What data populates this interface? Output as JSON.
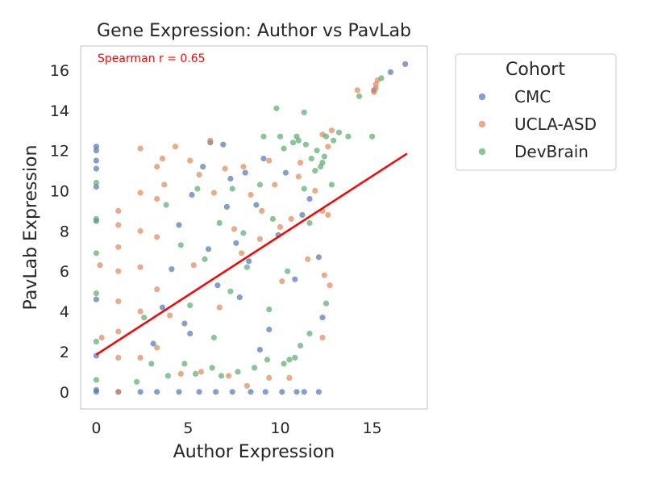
{
  "chart_data": {
    "type": "scatter",
    "title": "Gene Expression: Author vs PavLab",
    "xlabel": "Author Expression",
    "ylabel": "PavLab Expression",
    "xlim": [
      -0.85,
      18.0
    ],
    "ylim": [
      -0.85,
      17.2
    ],
    "xticks": [
      0,
      5,
      10,
      15
    ],
    "yticks": [
      0,
      2,
      4,
      6,
      8,
      10,
      12,
      14,
      16
    ],
    "grid": false,
    "annotation": {
      "text": "Spearman r = 0.65",
      "color": "#ff0000"
    },
    "legend": {
      "title": "Cohort",
      "placement": "outside-right"
    },
    "regression_line": {
      "x": [
        0,
        16.9
      ],
      "y": [
        1.85,
        11.85
      ],
      "color": "#ff0000"
    },
    "series": [
      {
        "name": "CMC",
        "color": "#4c72b0",
        "points": [
          [
            0,
            0
          ],
          [
            0,
            0.1
          ],
          [
            0,
            1.8
          ],
          [
            0,
            4.6
          ],
          [
            0,
            8.5
          ],
          [
            0,
            10.2
          ],
          [
            0,
            11.1
          ],
          [
            0,
            12.2
          ],
          [
            0,
            12.0
          ],
          [
            0,
            11.5
          ],
          [
            1.2,
            0
          ],
          [
            2.4,
            0
          ],
          [
            3.3,
            0
          ],
          [
            4.5,
            0
          ],
          [
            5.6,
            0
          ],
          [
            6.5,
            0
          ],
          [
            7.4,
            0
          ],
          [
            8.4,
            0
          ],
          [
            9.2,
            0
          ],
          [
            10.1,
            0
          ],
          [
            10.9,
            0
          ],
          [
            11.3,
            0
          ],
          [
            12.1,
            0
          ],
          [
            3.1,
            2.4
          ],
          [
            3.6,
            4.2
          ],
          [
            4.1,
            6.1
          ],
          [
            4.5,
            8.3
          ],
          [
            5.2,
            9.8
          ],
          [
            5.8,
            11.2
          ],
          [
            6.2,
            12.4
          ],
          [
            6.9,
            12.3
          ],
          [
            7.3,
            10.6
          ],
          [
            7.8,
            4.7
          ],
          [
            8.3,
            6.5
          ],
          [
            8.7,
            9.3
          ],
          [
            9.1,
            11.6
          ],
          [
            9.4,
            3.1
          ],
          [
            9.9,
            7.8
          ],
          [
            10.3,
            10.9
          ],
          [
            10.8,
            5.6
          ],
          [
            11.2,
            8.8
          ],
          [
            11.6,
            9.6
          ],
          [
            12.1,
            6.7
          ],
          [
            12.3,
            3.7
          ],
          [
            15.1,
            15.0
          ],
          [
            16.0,
            15.9
          ],
          [
            16.8,
            16.3
          ],
          [
            5.1,
            2.9
          ],
          [
            6.6,
            5.3
          ],
          [
            7.6,
            7.4
          ],
          [
            8.9,
            2.1
          ],
          [
            4.8,
            3.4
          ],
          [
            6.1,
            7.1
          ],
          [
            7.1,
            9.2
          ],
          [
            8.1,
            10.9
          ]
        ]
      },
      {
        "name": "UCLA-ASD",
        "color": "#dd8452",
        "points": [
          [
            1.2,
            0
          ],
          [
            1.2,
            1.7
          ],
          [
            1.2,
            3.0
          ],
          [
            1.2,
            4.5
          ],
          [
            1.2,
            6.0
          ],
          [
            1.2,
            7.2
          ],
          [
            1.2,
            8.3
          ],
          [
            1.2,
            9.0
          ],
          [
            2.4,
            1.7
          ],
          [
            2.4,
            4.0
          ],
          [
            2.4,
            6.2
          ],
          [
            2.4,
            8.0
          ],
          [
            2.4,
            9.9
          ],
          [
            2.4,
            12.1
          ],
          [
            3.3,
            2.2
          ],
          [
            3.3,
            5.1
          ],
          [
            3.3,
            7.7
          ],
          [
            3.3,
            9.6
          ],
          [
            3.3,
            11.2
          ],
          [
            3.6,
            11.6
          ],
          [
            4.3,
            12.2
          ],
          [
            5.1,
            11.5
          ],
          [
            5.6,
            10.8
          ],
          [
            6.2,
            12.5
          ],
          [
            7.0,
            11.1
          ],
          [
            7.5,
            8.1
          ],
          [
            8.0,
            11.2
          ],
          [
            8.4,
            9.8
          ],
          [
            8.9,
            7.6
          ],
          [
            9.4,
            11.5
          ],
          [
            9.7,
            10.3
          ],
          [
            10.1,
            5.5
          ],
          [
            10.6,
            8.6
          ],
          [
            11.1,
            11.4
          ],
          [
            11.5,
            6.6
          ],
          [
            11.9,
            10.0
          ],
          [
            12.3,
            9.0
          ],
          [
            12.4,
            5.8
          ],
          [
            12.6,
            8.8
          ],
          [
            12.7,
            5.3
          ],
          [
            12.6,
            12.2
          ],
          [
            12.3,
            12.8
          ],
          [
            12.8,
            13.0
          ],
          [
            14.2,
            15.0
          ],
          [
            15.1,
            14.9
          ],
          [
            15.2,
            15.3
          ],
          [
            15.3,
            15.5
          ],
          [
            15.2,
            15.1
          ],
          [
            0.3,
            2.7
          ],
          [
            0.2,
            6.3
          ],
          [
            4.6,
            0.9
          ],
          [
            5.7,
            1.0
          ],
          [
            7.2,
            0.8
          ],
          [
            8.2,
            0.3
          ],
          [
            9.4,
            0.7
          ],
          [
            10.5,
            0.7
          ],
          [
            12.3,
            2.7
          ],
          [
            4.0,
            3.8
          ],
          [
            5.3,
            6.3
          ],
          [
            6.7,
            4.2
          ],
          [
            7.9,
            6.9
          ],
          [
            9.0,
            9.0
          ],
          [
            10.0,
            8.2
          ],
          [
            11.0,
            10.7
          ],
          [
            3.7,
            10.3
          ],
          [
            6.4,
            9.9
          ]
        ]
      },
      {
        "name": "DevBrain",
        "color": "#55a868",
        "points": [
          [
            0,
            0.6
          ],
          [
            0,
            2.5
          ],
          [
            0,
            4.9
          ],
          [
            0,
            6.9
          ],
          [
            0,
            8.6
          ],
          [
            0,
            10.4
          ],
          [
            2.2,
            0.5
          ],
          [
            3.0,
            1.4
          ],
          [
            3.9,
            0.8
          ],
          [
            4.8,
            1.4
          ],
          [
            5.4,
            0.9
          ],
          [
            6.3,
            1.2
          ],
          [
            6.8,
            0.8
          ],
          [
            7.7,
            1.0
          ],
          [
            8.6,
            1.2
          ],
          [
            9.3,
            1.6
          ],
          [
            10.2,
            1.4
          ],
          [
            10.8,
            1.7
          ],
          [
            11.1,
            2.3
          ],
          [
            5.1,
            4.3
          ],
          [
            5.9,
            6.6
          ],
          [
            6.7,
            8.4
          ],
          [
            7.4,
            10.1
          ],
          [
            8.2,
            6.2
          ],
          [
            8.9,
            10.3
          ],
          [
            9.6,
            8.6
          ],
          [
            10.2,
            12.1
          ],
          [
            10.7,
            12.4
          ],
          [
            11.0,
            12.5
          ],
          [
            11.4,
            12.3
          ],
          [
            11.7,
            11.6
          ],
          [
            12.0,
            12.0
          ],
          [
            12.3,
            11.4
          ],
          [
            12.5,
            12.7
          ],
          [
            12.9,
            12.5
          ],
          [
            11.3,
            13.9
          ],
          [
            10.9,
            12.7
          ],
          [
            9.8,
            14.1
          ],
          [
            10.0,
            12.7
          ],
          [
            9.1,
            12.7
          ],
          [
            11.3,
            10.1
          ],
          [
            11.6,
            8.4
          ],
          [
            12.5,
            4.4
          ],
          [
            11.6,
            2.9
          ],
          [
            10.5,
            1.6
          ],
          [
            12.8,
            10.3
          ],
          [
            13.7,
            12.7
          ],
          [
            13.2,
            12.9
          ],
          [
            14.3,
            14.7
          ],
          [
            15.0,
            12.7
          ],
          [
            15.5,
            15.6
          ],
          [
            12.2,
            11.2
          ],
          [
            11.9,
            11.0
          ],
          [
            12.4,
            11.7
          ],
          [
            6.4,
            2.7
          ],
          [
            7.3,
            5.0
          ],
          [
            8.0,
            7.9
          ],
          [
            9.4,
            4.1
          ],
          [
            10.4,
            6.0
          ],
          [
            4.6,
            7.3
          ],
          [
            3.8,
            9.3
          ],
          [
            5.5,
            10.1
          ],
          [
            2.6,
            3.7
          ]
        ]
      }
    ]
  }
}
